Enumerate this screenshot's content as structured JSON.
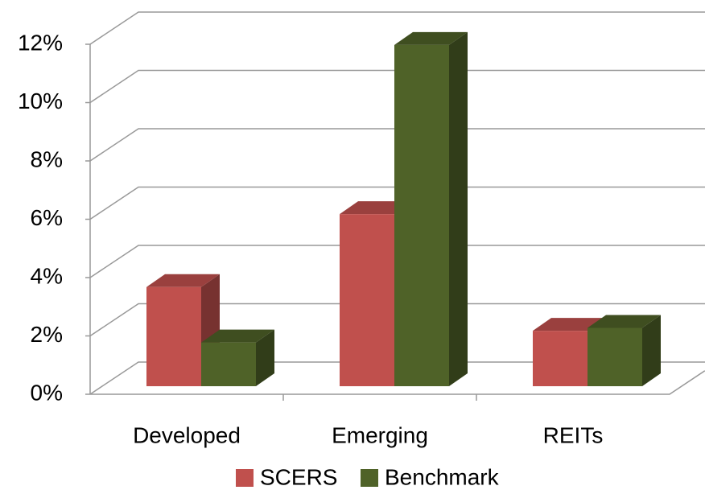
{
  "chart_data": {
    "type": "bar3d",
    "categories": [
      "Developed",
      "Emerging",
      "REITs"
    ],
    "series": [
      {
        "name": "SCERS",
        "color": "#c0504d",
        "values": [
          3.4,
          5.9,
          1.9
        ]
      },
      {
        "name": "Benchmark",
        "color": "#4f6228",
        "values": [
          1.5,
          11.7,
          2.0
        ]
      }
    ],
    "ylim": [
      0,
      12
    ],
    "yticks": [
      {
        "value": 0,
        "label": "0%"
      },
      {
        "value": 2,
        "label": "2%"
      },
      {
        "value": 4,
        "label": "4%"
      },
      {
        "value": 6,
        "label": "6%"
      },
      {
        "value": 8,
        "label": "8%"
      },
      {
        "value": 10,
        "label": "10%"
      },
      {
        "value": 12,
        "label": "12%"
      }
    ],
    "grid": true,
    "legend": "bottom"
  }
}
